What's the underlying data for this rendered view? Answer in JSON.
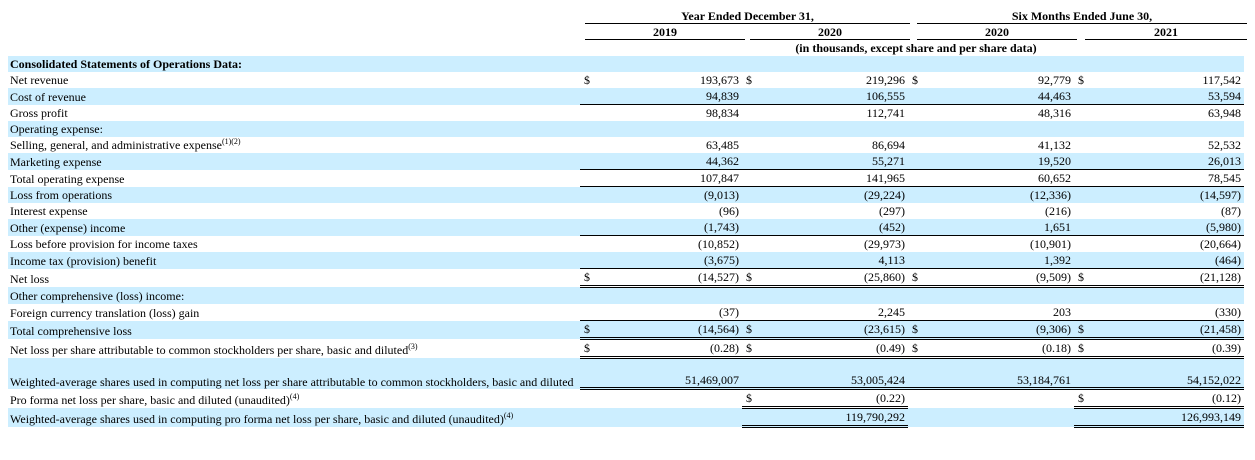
{
  "header": {
    "year_group": "Year Ended December 31,",
    "six_group": "Six Months Ended June 30,",
    "cols": [
      "2019",
      "2020",
      "2020",
      "2021"
    ],
    "units": "(in thousands, except share and per share data)"
  },
  "rows": [
    {
      "label": "Consolidated Statements of Operations Data:",
      "sup": "",
      "shade": true,
      "bold": true,
      "kind": "section"
    },
    {
      "label": "Net revenue",
      "sup": "",
      "shade": false,
      "cur": [
        "$",
        "$",
        "$",
        "$"
      ],
      "vals": [
        "193,673",
        "219,296",
        "92,779",
        "117,542"
      ]
    },
    {
      "label": "Cost of revenue",
      "sup": "",
      "shade": true,
      "cur": [
        "",
        "",
        "",
        ""
      ],
      "vals": [
        "94,839",
        "106,555",
        "44,463",
        "53,594"
      ],
      "border": "bb"
    },
    {
      "label": "Gross profit",
      "sup": "",
      "shade": false,
      "cur": [
        "",
        "",
        "",
        ""
      ],
      "vals": [
        "98,834",
        "112,741",
        "48,316",
        "63,948"
      ]
    },
    {
      "label": "Operating expense:",
      "sup": "",
      "shade": true,
      "kind": "section"
    },
    {
      "label": "Selling, general, and administrative expense",
      "sup": "(1)(2)",
      "shade": false,
      "cur": [
        "",
        "",
        "",
        ""
      ],
      "vals": [
        "63,485",
        "86,694",
        "41,132",
        "52,532"
      ]
    },
    {
      "label": "Marketing expense",
      "sup": "",
      "shade": true,
      "cur": [
        "",
        "",
        "",
        ""
      ],
      "vals": [
        "44,362",
        "55,271",
        "19,520",
        "26,013"
      ],
      "border": "bb"
    },
    {
      "label": "Total operating expense",
      "sup": "",
      "shade": false,
      "cur": [
        "",
        "",
        "",
        ""
      ],
      "vals": [
        "107,847",
        "141,965",
        "60,652",
        "78,545"
      ],
      "border": "bb"
    },
    {
      "label": "Loss from operations",
      "sup": "",
      "shade": true,
      "cur": [
        "",
        "",
        "",
        ""
      ],
      "vals": [
        "(9,013)",
        "(29,224)",
        "(12,336)",
        "(14,597)"
      ]
    },
    {
      "label": "Interest expense",
      "sup": "",
      "shade": false,
      "cur": [
        "",
        "",
        "",
        ""
      ],
      "vals": [
        "(96)",
        "(297)",
        "(216)",
        "(87)"
      ]
    },
    {
      "label": "Other (expense) income",
      "sup": "",
      "shade": true,
      "cur": [
        "",
        "",
        "",
        ""
      ],
      "vals": [
        "(1,743)",
        "(452)",
        "1,651",
        "(5,980)"
      ],
      "border": "bb"
    },
    {
      "label": "Loss before provision for income taxes",
      "sup": "",
      "shade": false,
      "cur": [
        "",
        "",
        "",
        ""
      ],
      "vals": [
        "(10,852)",
        "(29,973)",
        "(10,901)",
        "(20,664)"
      ]
    },
    {
      "label": "Income tax (provision) benefit",
      "sup": "",
      "shade": true,
      "cur": [
        "",
        "",
        "",
        ""
      ],
      "vals": [
        "(3,675)",
        "4,113",
        "1,392",
        "(464)"
      ],
      "border": "bb"
    },
    {
      "label": "Net loss",
      "sup": "",
      "shade": false,
      "cur": [
        "$",
        "$",
        "$",
        "$"
      ],
      "vals": [
        "(14,527)",
        "(25,860)",
        "(9,509)",
        "(21,128)"
      ],
      "border": "dbl"
    },
    {
      "label": "Other comprehensive (loss) income:",
      "sup": "",
      "shade": true,
      "kind": "section"
    },
    {
      "label": "Foreign currency translation (loss) gain",
      "sup": "",
      "shade": false,
      "cur": [
        "",
        "",
        "",
        ""
      ],
      "vals": [
        "(37)",
        "2,245",
        "203",
        "(330)"
      ],
      "border": "bb"
    },
    {
      "label": "Total comprehensive loss",
      "sup": "",
      "shade": true,
      "cur": [
        "$",
        "$",
        "$",
        "$"
      ],
      "vals": [
        "(14,564)",
        "(23,615)",
        "(9,306)",
        "(21,458)"
      ],
      "border": "dbl"
    },
    {
      "label": "Net loss per share attributable to common stockholders per share, basic and diluted",
      "sup": "(3)",
      "shade": false,
      "cur": [
        "$",
        "$",
        "$",
        "$"
      ],
      "vals": [
        "(0.28)",
        "(0.49)",
        "(0.18)",
        "(0.39)"
      ],
      "border": "dbl"
    },
    {
      "label": "Weighted-average shares used in computing net loss per share attributable to common stockholders, basic and diluted",
      "sup": "",
      "shade": true,
      "tall": true,
      "cur": [
        "",
        "",
        "",
        ""
      ],
      "vals": [
        "51,469,007",
        "53,005,424",
        "53,184,761",
        "54,152,022"
      ],
      "border": "dbl"
    },
    {
      "label": "Pro forma net loss per share, basic and diluted (unaudited)",
      "sup": "(4)",
      "shade": false,
      "cur": [
        "",
        "$",
        "",
        "$"
      ],
      "vals": [
        "",
        "(0.22)",
        "",
        "(0.12)"
      ],
      "border": "dbl"
    },
    {
      "label": "Weighted-average shares used in computing pro forma net loss per share, basic and diluted (unaudited)",
      "sup": "(4)",
      "shade": true,
      "cur": [
        "",
        "",
        "",
        ""
      ],
      "vals": [
        "",
        "119,790,292",
        "",
        "126,993,149"
      ],
      "border": "dbl"
    }
  ]
}
